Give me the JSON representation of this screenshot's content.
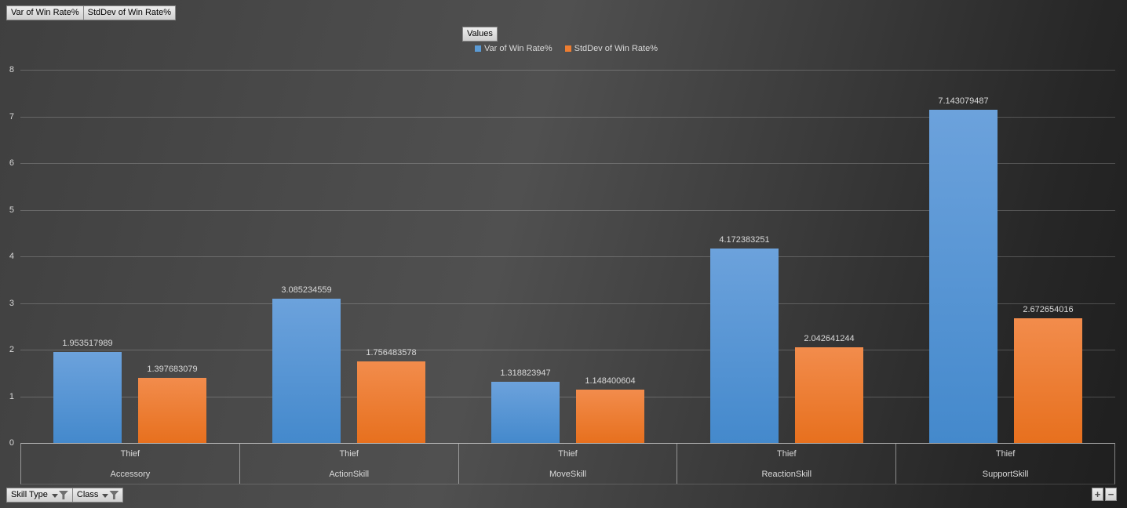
{
  "field_buttons": {
    "top": [
      {
        "label": "Var of Win Rate%"
      },
      {
        "label": "StdDev of Win Rate%"
      }
    ],
    "legend_button": "Values",
    "bottom": [
      {
        "label": "Skill Type"
      },
      {
        "label": "Class"
      }
    ]
  },
  "expand_collapse": {
    "expand": "+",
    "collapse": "−"
  },
  "colors": {
    "legend_text": "#d9d9d9",
    "axis_text": "#d9d9d9",
    "data_label_text": "#d9d9d9"
  },
  "chart_data": {
    "type": "bar",
    "title": "",
    "xlabel": "",
    "ylabel": "",
    "ylim": [
      0,
      8
    ],
    "yticks": [
      0,
      1,
      2,
      3,
      4,
      5,
      6,
      7,
      8
    ],
    "grid": true,
    "legend_position": "top",
    "category_axis": {
      "class_row": [
        "Thief",
        "Thief",
        "Thief",
        "Thief",
        "Thief"
      ],
      "skill_row": [
        "Accessory",
        "ActionSkill",
        "MoveSkill",
        "ReactionSkill",
        "SupportSkill"
      ]
    },
    "series": [
      {
        "name": "Var of Win Rate%",
        "color": "#5B9BD5",
        "gradient_top": "#6CA2DC",
        "gradient_bottom": "#4489CC",
        "values": [
          1.953517989,
          3.085234559,
          1.318823947,
          4.172383251,
          7.143079487
        ]
      },
      {
        "name": "StdDev of Win Rate%",
        "color": "#ED7D31",
        "gradient_top": "#F28C4C",
        "gradient_bottom": "#E7701E",
        "values": [
          1.397683079,
          1.756483578,
          1.148400604,
          2.042641244,
          2.672654016
        ]
      }
    ]
  }
}
